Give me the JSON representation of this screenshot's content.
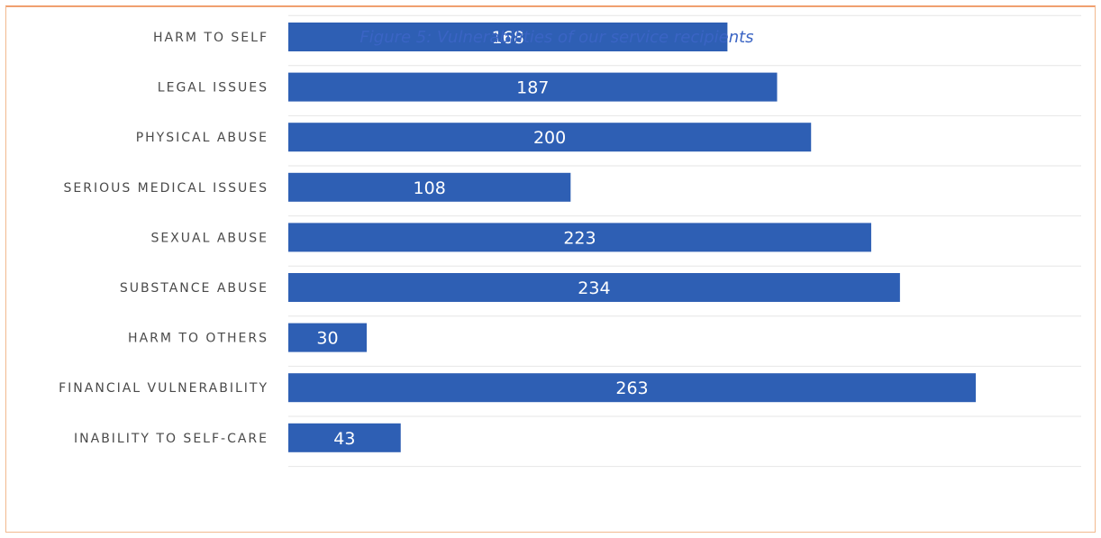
{
  "chart_data": {
    "type": "bar",
    "orientation": "horizontal",
    "title": "Figure 5: Vulnerabilities of our service recipients",
    "categories": [
      "HARM TO SELF",
      "LEGAL ISSUES",
      "PHYSICAL ABUSE",
      "SERIOUS MEDICAL ISSUES",
      "SEXUAL ABUSE",
      "SUBSTANCE ABUSE",
      "HARM TO OTHERS",
      "FINANCIAL VULNERABILITY",
      "INABILITY TO SELF-CARE"
    ],
    "values": [
      168,
      187,
      200,
      108,
      223,
      234,
      30,
      263,
      43
    ],
    "bar_color": "#2e5fb4",
    "label_color": "#ffffff",
    "title_color": "#3a64c4",
    "grid": true,
    "legend": "none",
    "xlim": [
      0,
      300
    ]
  }
}
